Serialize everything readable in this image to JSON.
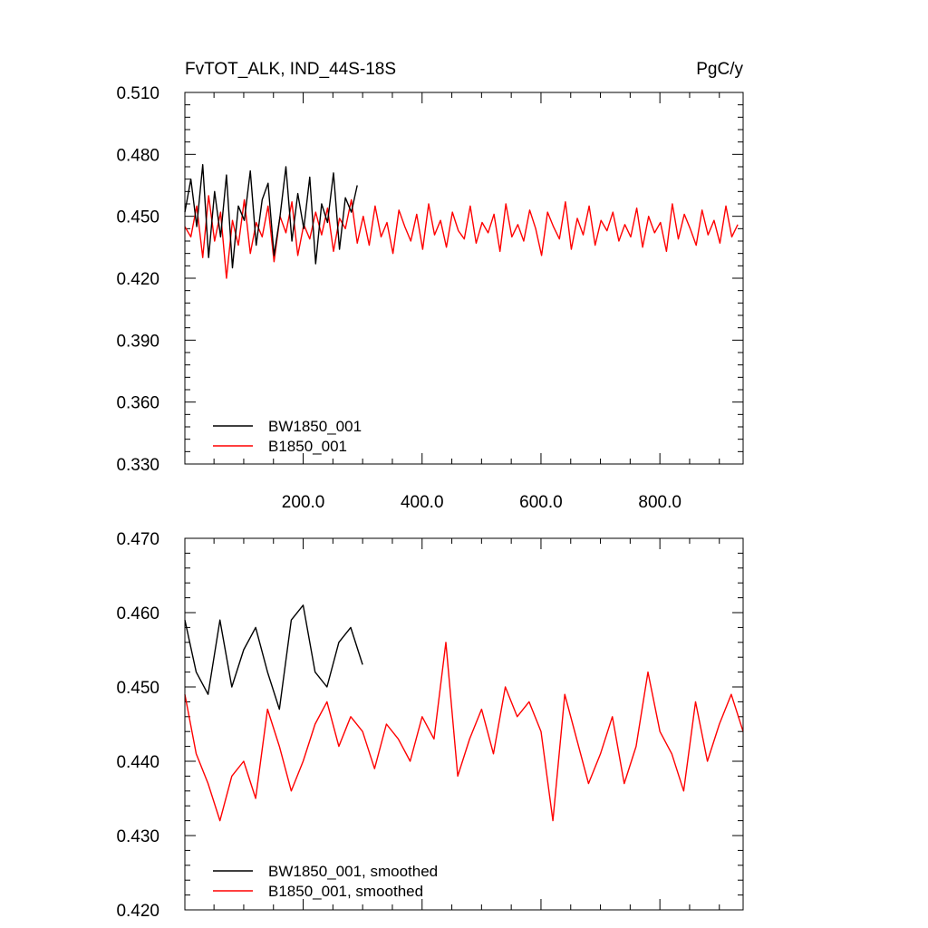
{
  "chart_data": [
    {
      "type": "line",
      "title": "FvTOT_ALK, IND_44S-18S",
      "units": "PgC/y",
      "xlim": [
        1,
        940
      ],
      "ylim": [
        0.33,
        0.51
      ],
      "ytick_values": [
        0.33,
        0.36,
        0.39,
        0.42,
        0.45,
        0.48,
        0.51
      ],
      "ytick_labels": [
        "0.330",
        "0.360",
        "0.390",
        "0.420",
        "0.450",
        "0.480",
        "0.510"
      ],
      "xtick_values": [
        200,
        400,
        600,
        800
      ],
      "xtick_labels": [
        "200.0",
        "400.0",
        "600.0",
        "800.0"
      ],
      "grid": false,
      "legend_position": "bottom-left",
      "series": [
        {
          "name": "BW1850_001",
          "color": "#000000",
          "x_start": 1,
          "x_step": 10,
          "values": [
            0.452,
            0.468,
            0.445,
            0.475,
            0.43,
            0.462,
            0.44,
            0.47,
            0.425,
            0.455,
            0.448,
            0.472,
            0.436,
            0.458,
            0.466,
            0.431,
            0.45,
            0.474,
            0.438,
            0.461,
            0.444,
            0.469,
            0.427,
            0.456,
            0.447,
            0.471,
            0.434,
            0.459,
            0.452,
            0.465
          ]
        },
        {
          "name": "B1850_001",
          "color": "#ff0000",
          "x_start": 1,
          "x_step": 10,
          "values": [
            0.445,
            0.44,
            0.455,
            0.43,
            0.46,
            0.438,
            0.452,
            0.42,
            0.448,
            0.436,
            0.458,
            0.432,
            0.447,
            0.44,
            0.455,
            0.428,
            0.45,
            0.442,
            0.457,
            0.431,
            0.446,
            0.439,
            0.452,
            0.441,
            0.454,
            0.433,
            0.449,
            0.444,
            0.458,
            0.437,
            0.45,
            0.436,
            0.455,
            0.44,
            0.447,
            0.432,
            0.453,
            0.445,
            0.438,
            0.451,
            0.434,
            0.456,
            0.441,
            0.448,
            0.435,
            0.452,
            0.443,
            0.439,
            0.455,
            0.437,
            0.447,
            0.442,
            0.451,
            0.433,
            0.456,
            0.44,
            0.446,
            0.438,
            0.453,
            0.444,
            0.431,
            0.452,
            0.445,
            0.439,
            0.457,
            0.434,
            0.449,
            0.441,
            0.455,
            0.436,
            0.448,
            0.443,
            0.452,
            0.438,
            0.446,
            0.44,
            0.454,
            0.435,
            0.45,
            0.442,
            0.447,
            0.433,
            0.456,
            0.439,
            0.451,
            0.444,
            0.436,
            0.453,
            0.441,
            0.448,
            0.437,
            0.455,
            0.44,
            0.446
          ]
        }
      ],
      "legend": {
        "entries": [
          {
            "label": "BW1850_001",
            "color": "#000000"
          },
          {
            "label": "B1850_001",
            "color": "#ff0000"
          }
        ]
      }
    },
    {
      "type": "line",
      "title": "",
      "xlim": [
        1,
        940
      ],
      "ylim": [
        0.42,
        0.47
      ],
      "ytick_values": [
        0.42,
        0.43,
        0.44,
        0.45,
        0.46,
        0.47
      ],
      "ytick_labels": [
        "0.420",
        "0.430",
        "0.440",
        "0.450",
        "0.460",
        "0.470"
      ],
      "xtick_values": [
        200,
        400,
        600,
        800
      ],
      "xtick_labels": [],
      "grid": false,
      "legend_position": "bottom-left",
      "series": [
        {
          "name": "BW1850_001, smoothed",
          "color": "#000000",
          "x": [
            1,
            20,
            40,
            60,
            80,
            100,
            120,
            140,
            160,
            180,
            200,
            220,
            240,
            260,
            280,
            300
          ],
          "values": [
            0.459,
            0.452,
            0.449,
            0.459,
            0.45,
            0.455,
            0.458,
            0.452,
            0.447,
            0.459,
            0.461,
            0.452,
            0.45,
            0.456,
            0.458,
            0.453
          ]
        },
        {
          "name": "B1850_001, smoothed",
          "color": "#ff0000",
          "x": [
            1,
            20,
            40,
            60,
            80,
            100,
            120,
            140,
            160,
            180,
            200,
            220,
            240,
            260,
            280,
            300,
            320,
            340,
            360,
            380,
            400,
            420,
            440,
            460,
            480,
            500,
            520,
            540,
            560,
            580,
            600,
            620,
            640,
            660,
            680,
            700,
            720,
            740,
            760,
            780,
            800,
            820,
            840,
            860,
            880,
            900,
            920,
            940
          ],
          "values": [
            0.449,
            0.441,
            0.437,
            0.432,
            0.438,
            0.44,
            0.435,
            0.447,
            0.442,
            0.436,
            0.44,
            0.445,
            0.448,
            0.442,
            0.446,
            0.444,
            0.439,
            0.445,
            0.443,
            0.44,
            0.446,
            0.443,
            0.456,
            0.438,
            0.443,
            0.447,
            0.441,
            0.45,
            0.446,
            0.448,
            0.444,
            0.432,
            0.449,
            0.443,
            0.437,
            0.441,
            0.446,
            0.437,
            0.442,
            0.452,
            0.444,
            0.441,
            0.436,
            0.448,
            0.44,
            0.445,
            0.449,
            0.444
          ]
        }
      ],
      "legend": {
        "entries": [
          {
            "label": "BW1850_001, smoothed",
            "color": "#000000"
          },
          {
            "label": "B1850_001, smoothed",
            "color": "#ff0000"
          }
        ]
      }
    }
  ]
}
